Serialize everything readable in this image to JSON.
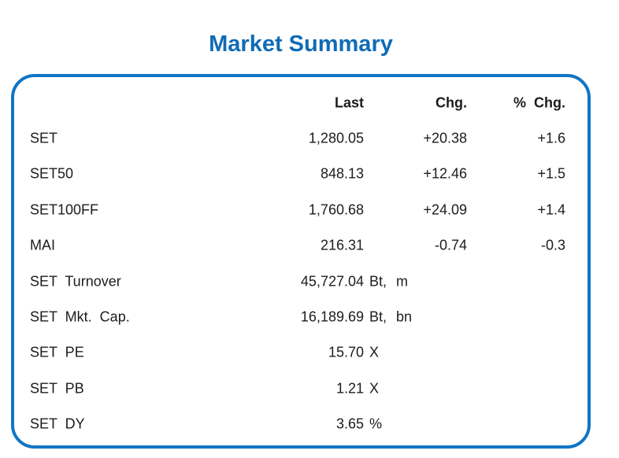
{
  "page": {
    "title": "Market Summary"
  },
  "colors": {
    "title_blue": "#0f6bb6",
    "accent_blue": "#1175c5",
    "text": "#1c1c1c"
  },
  "table": {
    "headers": {
      "last": "Last",
      "chg": "Chg.",
      "pchg": "% Chg."
    },
    "rows": [
      {
        "label": "SET",
        "last": "1,280.05",
        "unit": "",
        "chg": "+20.38",
        "pchg": "+1.6"
      },
      {
        "label": "SET50",
        "last": "848.13",
        "unit": "",
        "chg": "+12.46",
        "pchg": "+1.5"
      },
      {
        "label": "SET100FF",
        "last": "1,760.68",
        "unit": "",
        "chg": "+24.09",
        "pchg": "+1.4"
      },
      {
        "label": "MAI",
        "last": "216.31",
        "unit": "",
        "chg": "-0.74",
        "pchg": "-0.3"
      },
      {
        "label": "SET Turnover",
        "last": "45,727.04",
        "unit": "Bt, m",
        "chg": "",
        "pchg": ""
      },
      {
        "label": "SET Mkt. Cap.",
        "last": "16,189.69",
        "unit": "Bt, bn",
        "chg": "",
        "pchg": ""
      },
      {
        "label": "SET PE",
        "last": "15.70",
        "unit": "X",
        "chg": "",
        "pchg": ""
      },
      {
        "label": "SET PB",
        "last": "1.21",
        "unit": "X",
        "chg": "",
        "pchg": ""
      },
      {
        "label": "SET DY",
        "last": "3.65",
        "unit": "%",
        "chg": "",
        "pchg": ""
      }
    ]
  },
  "chart_data": {
    "type": "table",
    "title": "Market Summary",
    "columns": [
      "",
      "Last",
      "Chg.",
      "% Chg."
    ],
    "rows": [
      [
        "SET",
        "1,280.05",
        "+20.38",
        "+1.6"
      ],
      [
        "SET50",
        "848.13",
        "+12.46",
        "+1.5"
      ],
      [
        "SET100FF",
        "1,760.68",
        "+24.09",
        "+1.4"
      ],
      [
        "MAI",
        "216.31",
        "-0.74",
        "-0.3"
      ],
      [
        "SET Turnover",
        "45,727.04 Bt, m",
        "",
        ""
      ],
      [
        "SET Mkt. Cap.",
        "16,189.69 Bt, bn",
        "",
        ""
      ],
      [
        "SET PE",
        "15.70 X",
        "",
        ""
      ],
      [
        "SET PB",
        "1.21 X",
        "",
        ""
      ],
      [
        "SET DY",
        "3.65 %",
        "",
        ""
      ]
    ],
    "layout": {
      "numeric_columns_right_aligned": true,
      "units_overflow_right_of_last_column": true,
      "card_border_color": "#1175c5",
      "title_color": "#0f6bb6"
    }
  }
}
